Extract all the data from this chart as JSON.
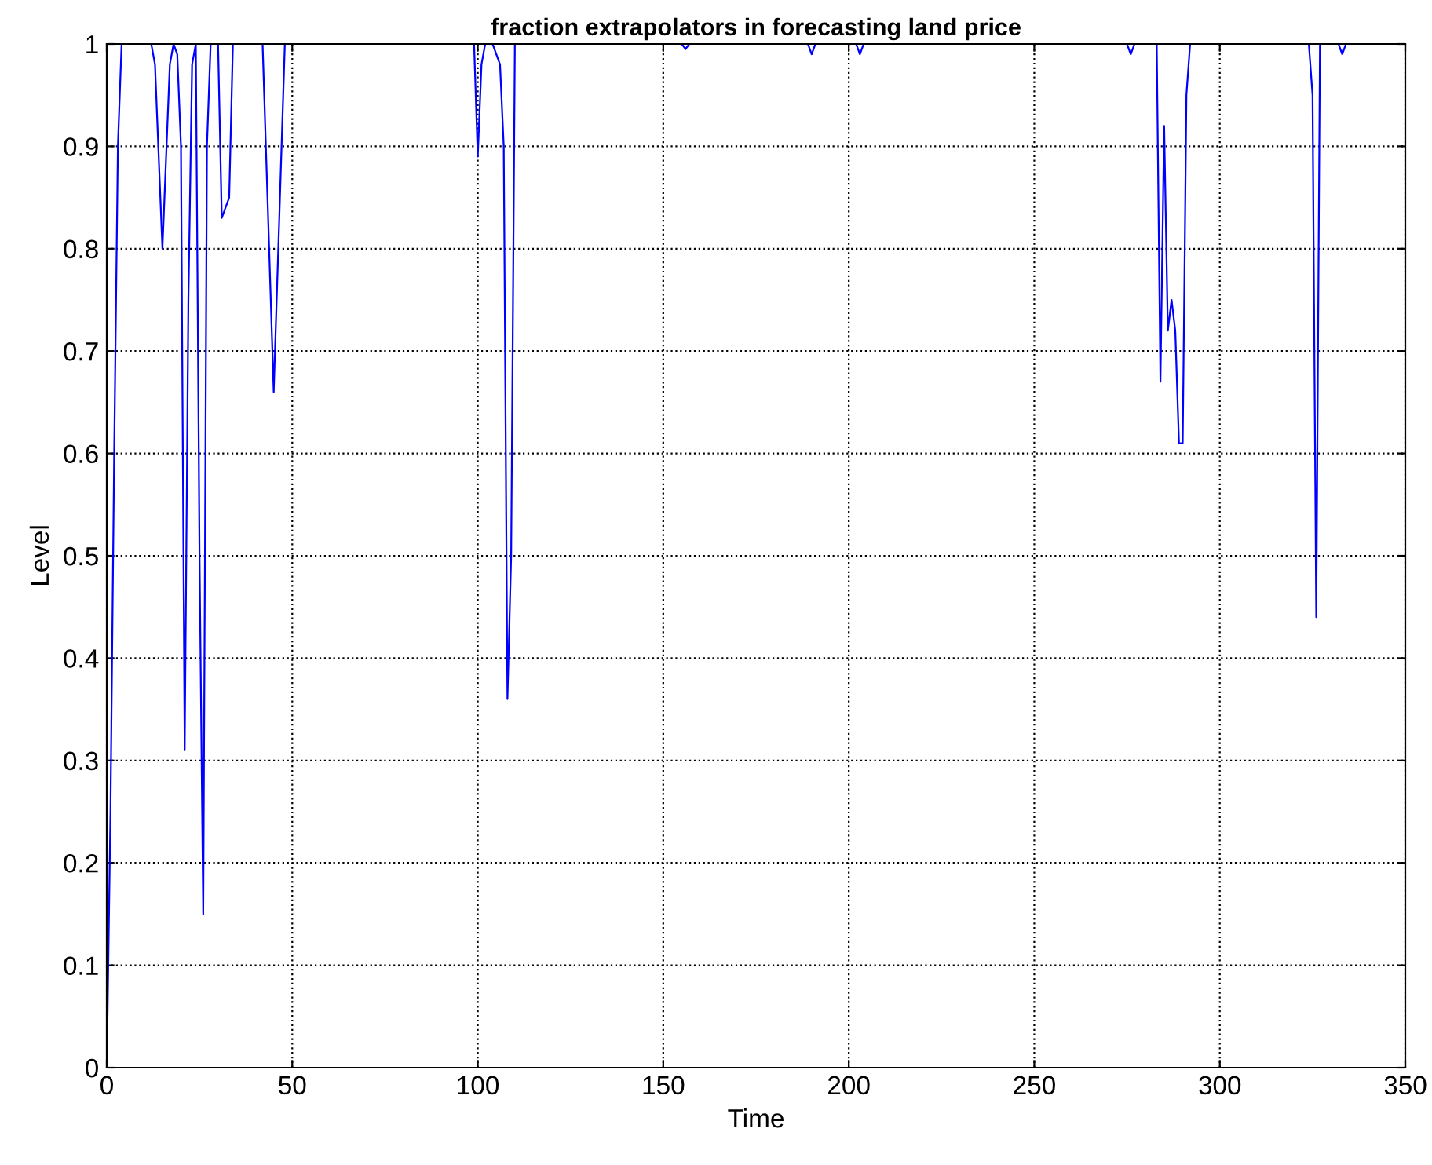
{
  "chart_data": {
    "type": "line",
    "title": "fraction extrapolators in forecasting land price",
    "xlabel": "Time",
    "ylabel": "Level",
    "x": [
      0,
      1,
      2,
      3,
      4,
      12,
      13,
      15,
      17,
      18,
      19,
      20,
      21,
      22,
      23,
      24,
      25,
      26,
      27,
      28,
      30,
      31,
      33,
      34,
      42,
      45,
      48,
      99,
      100,
      101,
      102,
      104,
      106,
      107,
      108,
      109,
      110,
      155,
      156,
      157,
      189,
      190,
      191,
      202,
      203,
      204,
      275,
      276,
      277,
      283,
      284,
      285,
      286,
      287,
      288,
      289,
      290,
      291,
      292,
      324,
      325,
      326,
      327,
      332,
      333,
      334
    ],
    "series": [
      {
        "color": "#0000ff",
        "values": [
          0,
          0.25,
          0.6,
          0.9,
          1,
          1,
          0.98,
          0.8,
          0.98,
          1,
          0.99,
          0.9,
          0.31,
          0.75,
          0.98,
          1,
          0.5,
          0.15,
          0.9,
          1,
          1,
          0.83,
          0.85,
          1,
          1,
          0.66,
          1,
          1,
          0.89,
          0.98,
          1,
          1,
          0.98,
          0.9,
          0.36,
          0.5,
          1,
          1,
          0.995,
          1,
          1,
          0.99,
          1,
          1,
          0.99,
          1,
          1,
          0.99,
          1,
          1,
          0.67,
          0.92,
          0.72,
          0.75,
          0.72,
          0.61,
          0.61,
          0.95,
          1,
          1,
          0.95,
          0.44,
          1,
          1,
          0.99,
          1
        ]
      }
    ],
    "xlim": [
      0,
      350
    ],
    "ylim": [
      0,
      1
    ],
    "xticks": [
      0,
      50,
      100,
      150,
      200,
      250,
      300,
      350
    ],
    "yticks": [
      0,
      0.1,
      0.2,
      0.3,
      0.4,
      0.5,
      0.6,
      0.7,
      0.8,
      0.9,
      1
    ],
    "grid": true,
    "marker": "none",
    "line_style": "solid"
  }
}
